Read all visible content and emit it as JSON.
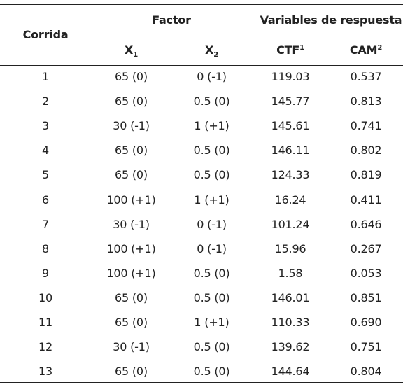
{
  "header": {
    "corrida": "Corrida",
    "factor": "Factor",
    "variables": "Variables de respuesta",
    "x1": {
      "base": "X",
      "sub": "1"
    },
    "x2": {
      "base": "X",
      "sub": "2"
    },
    "ctf": {
      "base": "CTF",
      "sup": "1"
    },
    "cam": {
      "base": "CAM",
      "sup": "2"
    }
  },
  "rows": [
    [
      "1",
      "65 (0)",
      "0 (-1)",
      "119.03",
      "0.537"
    ],
    [
      "2",
      "65 (0)",
      "0.5 (0)",
      "145.77",
      "0.813"
    ],
    [
      "3",
      "30 (-1)",
      "1 (+1)",
      "145.61",
      "0.741"
    ],
    [
      "4",
      "65 (0)",
      "0.5 (0)",
      "146.11",
      "0.802"
    ],
    [
      "5",
      "65 (0)",
      "0.5 (0)",
      "124.33",
      "0.819"
    ],
    [
      "6",
      "100 (+1)",
      "1 (+1)",
      "16.24",
      "0.411"
    ],
    [
      "7",
      "30 (-1)",
      "0 (-1)",
      "101.24",
      "0.646"
    ],
    [
      "8",
      "100 (+1)",
      "0 (-1)",
      "15.96",
      "0.267"
    ],
    [
      "9",
      "100 (+1)",
      "0.5 (0)",
      "1.58",
      "0.053"
    ],
    [
      "10",
      "65 (0)",
      "0.5 (0)",
      "146.01",
      "0.851"
    ],
    [
      "11",
      "65 (0)",
      "1 (+1)",
      "110.33",
      "0.690"
    ],
    [
      "12",
      "30 (-1)",
      "0.5 (0)",
      "139.62",
      "0.751"
    ],
    [
      "13",
      "65 (0)",
      "0.5 (0)",
      "144.64",
      "0.804"
    ]
  ]
}
